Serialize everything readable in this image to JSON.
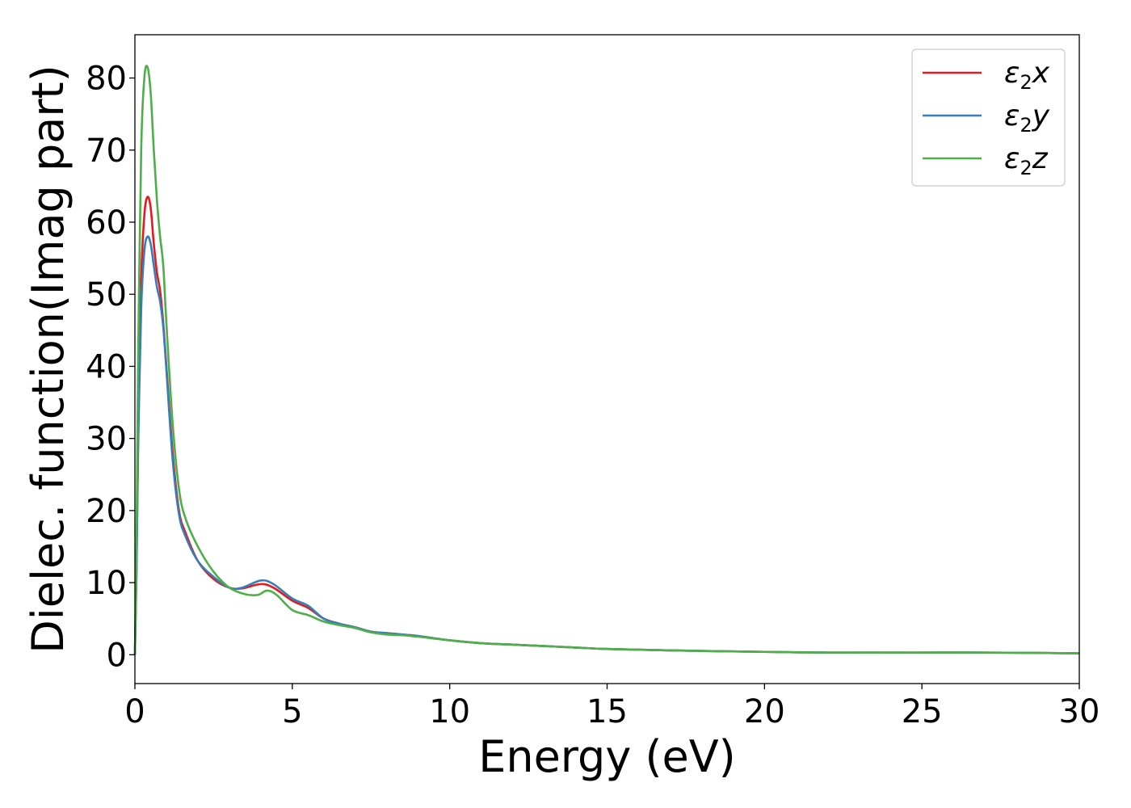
{
  "chart_data": {
    "type": "line",
    "title": "",
    "xlabel": "Energy (eV)",
    "ylabel": "Dielec. function(Imag part)",
    "xlim": [
      0,
      30
    ],
    "ylim": [
      -4,
      86
    ],
    "xticks": [
      0,
      5,
      10,
      15,
      20,
      25,
      30
    ],
    "yticks": [
      0,
      10,
      20,
      30,
      40,
      50,
      60,
      70,
      80
    ],
    "grid": false,
    "legend_position": "top-right",
    "colors": {
      "series_x": "#e41a1c",
      "series_y": "#377eb8",
      "series_z": "#4daf4a",
      "axis": "#000000"
    },
    "series": [
      {
        "name": "ε2x",
        "legend_base": "ε",
        "legend_sub": "2",
        "legend_suffix": "x",
        "color": "#e41a1c",
        "x": [
          0,
          0.05,
          0.1,
          0.2,
          0.3,
          0.4,
          0.5,
          0.6,
          0.7,
          0.8,
          0.9,
          1.0,
          1.2,
          1.4,
          1.6,
          2.0,
          2.5,
          3.0,
          3.4,
          4.0,
          4.4,
          5.0,
          5.5,
          6.0,
          6.5,
          7.0,
          7.5,
          8.0,
          8.5,
          9.0,
          10,
          11,
          12,
          13,
          14,
          15,
          17,
          20,
          22,
          25,
          27,
          30
        ],
        "y": [
          0,
          12,
          30,
          52,
          61,
          63.5,
          62,
          57,
          53,
          50.5,
          46,
          40,
          28,
          20,
          17,
          13,
          10.5,
          9.3,
          9.2,
          9.8,
          9.3,
          7.5,
          6.5,
          5,
          4.3,
          3.8,
          3.2,
          3.0,
          2.8,
          2.6,
          2.0,
          1.6,
          1.4,
          1.2,
          1.0,
          0.8,
          0.6,
          0.4,
          0.3,
          0.3,
          0.3,
          0.2
        ]
      },
      {
        "name": "ε2y",
        "legend_base": "ε",
        "legend_sub": "2",
        "legend_suffix": "y",
        "color": "#377eb8",
        "x": [
          0,
          0.05,
          0.1,
          0.2,
          0.3,
          0.4,
          0.5,
          0.6,
          0.7,
          0.8,
          0.9,
          1.0,
          1.2,
          1.4,
          1.6,
          2.0,
          2.5,
          3.0,
          3.4,
          4.0,
          4.4,
          5.0,
          5.5,
          6.0,
          6.5,
          7.0,
          7.5,
          8.0,
          8.5,
          9.0,
          10,
          11,
          12,
          13,
          14,
          15,
          17,
          20,
          22,
          25,
          27,
          30
        ],
        "y": [
          0,
          11,
          28,
          48,
          56,
          58,
          57,
          54,
          51,
          49,
          45.5,
          39.5,
          27,
          19.5,
          16.5,
          13,
          10.8,
          9.3,
          9.3,
          10.3,
          9.8,
          7.8,
          6.8,
          5,
          4.3,
          3.8,
          3.2,
          3.0,
          2.8,
          2.6,
          2.0,
          1.6,
          1.4,
          1.2,
          1.0,
          0.8,
          0.6,
          0.4,
          0.3,
          0.3,
          0.3,
          0.2
        ]
      },
      {
        "name": "ε2z",
        "legend_base": "ε",
        "legend_sub": "2",
        "legend_suffix": "z",
        "color": "#4daf4a",
        "x": [
          0,
          0.05,
          0.1,
          0.2,
          0.3,
          0.4,
          0.5,
          0.6,
          0.7,
          0.8,
          0.9,
          1.0,
          1.2,
          1.4,
          1.6,
          2.0,
          2.5,
          3.0,
          3.5,
          3.9,
          4.2,
          4.5,
          5.0,
          5.5,
          6.0,
          6.5,
          7.0,
          7.5,
          8.0,
          8.5,
          9.0,
          10,
          11,
          12,
          13,
          14,
          15,
          17,
          20,
          22,
          25,
          27,
          30
        ],
        "y": [
          0,
          15,
          40,
          70,
          80,
          81.5,
          78,
          70,
          63,
          58,
          54,
          46,
          32,
          23,
          19,
          15,
          11.5,
          9.3,
          8.4,
          8.3,
          8.9,
          8.3,
          6.2,
          5.5,
          4.6,
          4.1,
          3.7,
          3.1,
          2.8,
          2.7,
          2.5,
          2.0,
          1.6,
          1.4,
          1.2,
          1.0,
          0.8,
          0.6,
          0.4,
          0.3,
          0.3,
          0.3,
          0.2
        ]
      }
    ]
  }
}
